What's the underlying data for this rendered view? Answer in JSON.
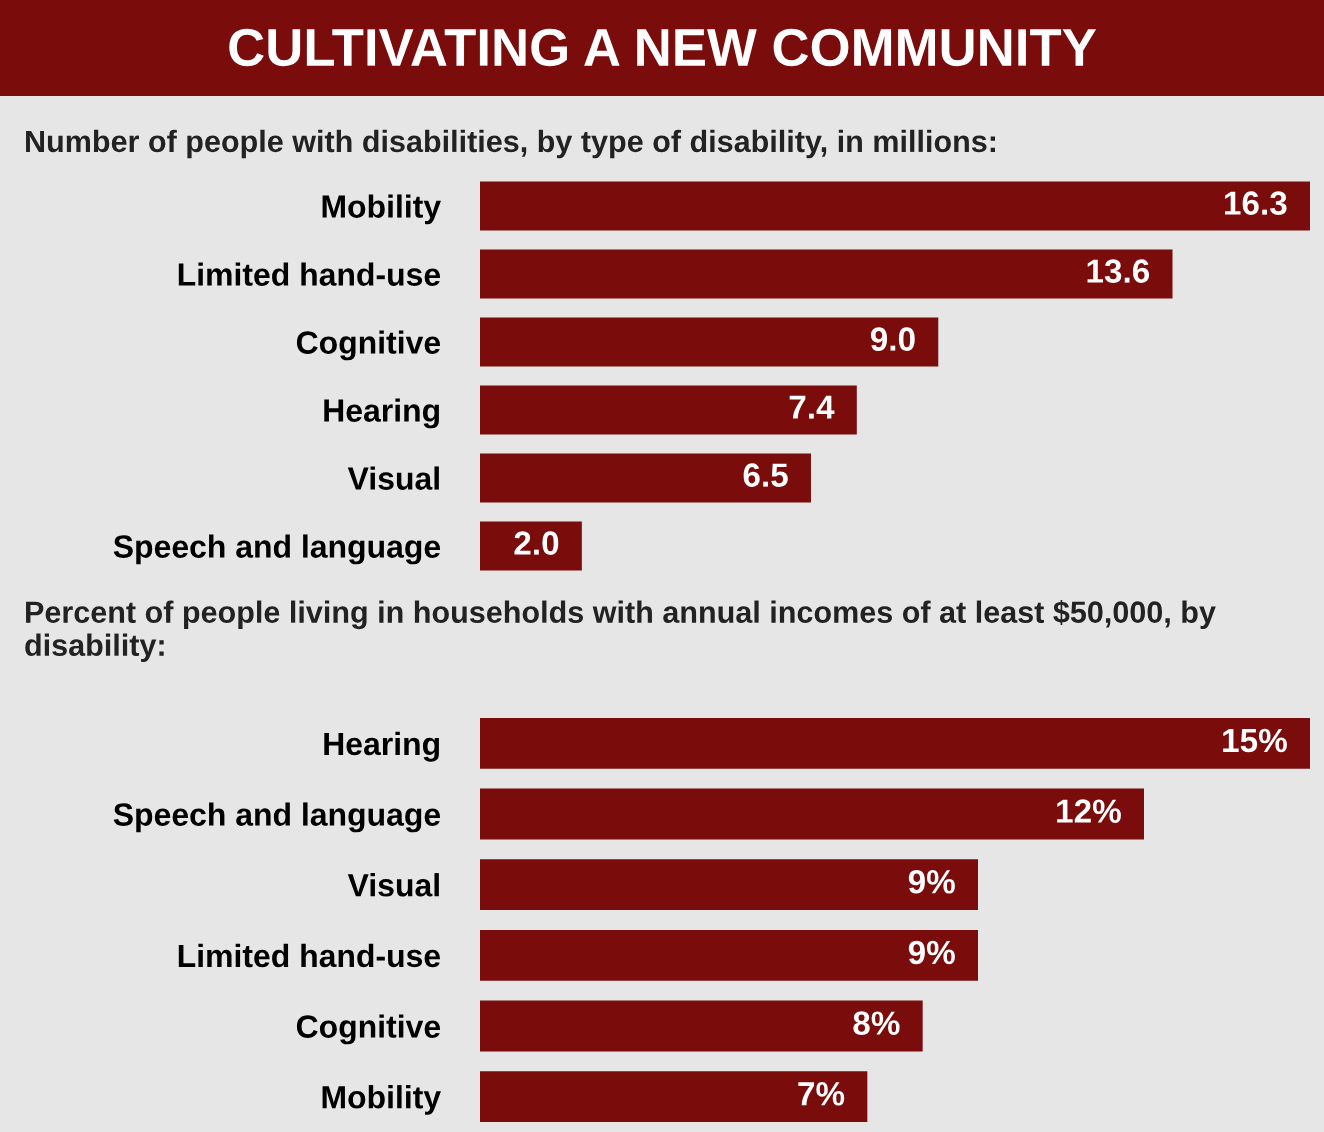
{
  "chart_data": [
    {
      "type": "bar",
      "orientation": "horizontal",
      "title": "CULTIVATING A NEW COMMUNITY",
      "subtitle": "Number of people with disabilities, by type of disability, in millions:",
      "categories": [
        "Mobility",
        "Limited hand-use",
        "Cognitive",
        "Hearing",
        "Visual",
        "Speech and language"
      ],
      "values": [
        16.3,
        13.6,
        9.0,
        7.4,
        6.5,
        2.0
      ],
      "value_labels": [
        "16.3",
        "13.6",
        "9.0",
        "7.4",
        "6.5",
        "2.0"
      ],
      "color": "#7a0c0c",
      "tick_labels": "y",
      "grid": false,
      "legend": false
    },
    {
      "type": "bar",
      "orientation": "horizontal",
      "title": "Percent of people living in households with annual incomes of at least $50,000, by disability:",
      "categories": [
        "Hearing",
        "Speech and language",
        "Visual",
        "Limited hand-use",
        "Cognitive",
        "Mobility"
      ],
      "values": [
        15,
        12,
        9,
        9,
        8,
        7
      ],
      "value_labels": [
        "15%",
        "12%",
        "9%",
        "9%",
        "8%",
        "7%"
      ],
      "color": "#7a0c0c",
      "tick_labels": "y",
      "grid": false,
      "legend": false
    }
  ]
}
